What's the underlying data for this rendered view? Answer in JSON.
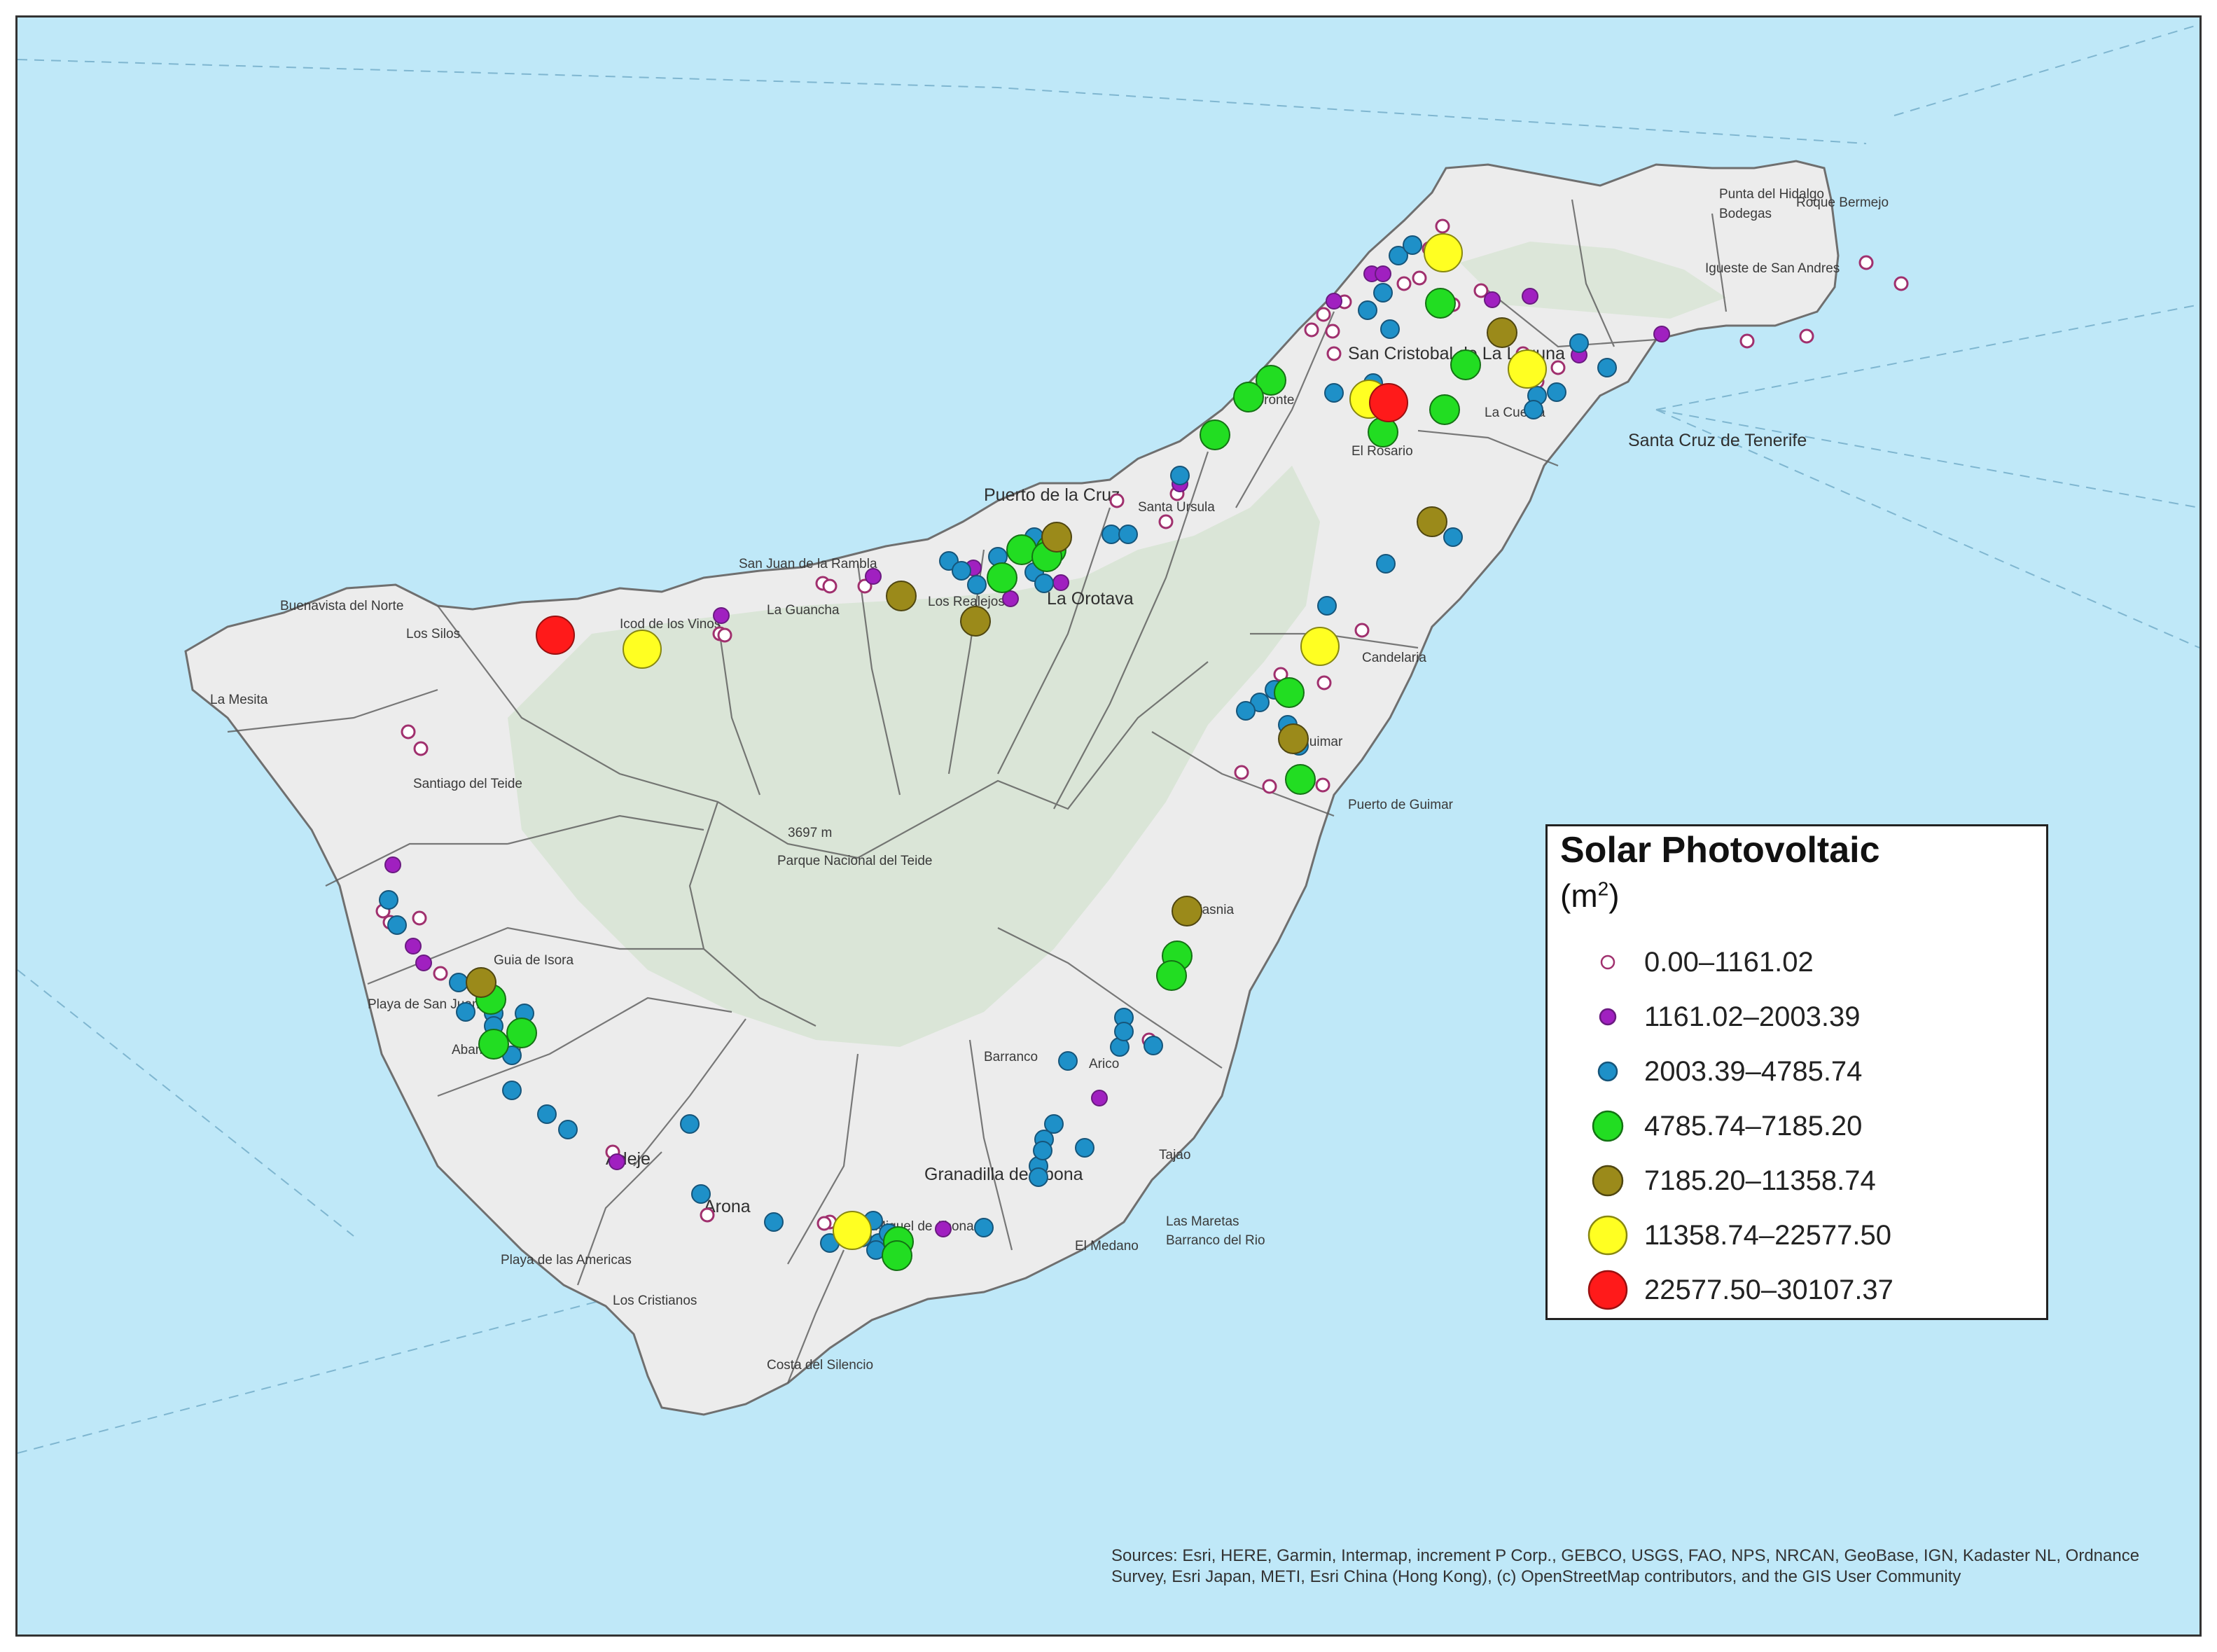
{
  "map": {
    "colors": {
      "sea": "#bfe8f8",
      "land": "#ececec",
      "park": "#d7e4d3",
      "roads": "#6b6b6b",
      "border": "#333333"
    },
    "place_labels": [
      "Punta del Hidalgo",
      "Roque Bermejo",
      "Bodegas",
      "Igueste de San Andres",
      "San Cristobal de La Laguna",
      "Santa Cruz de Tenerife",
      "La Cuesta",
      "El Rosario",
      "Tacoronte",
      "Santa Ursula",
      "Puerto de la Cruz",
      "La Orotava",
      "Los Realejos",
      "San Juan de la Rambla",
      "La Guancha",
      "Icod de los Vinos",
      "Buenavista del Norte",
      "Los Silos",
      "La Mesita",
      "Santiago del Teide",
      "Candelaria",
      "Guimar",
      "Puerto de Guimar",
      "Parque Nacional del Teide",
      "3697 m",
      "Fasnia",
      "Arico",
      "Barranco",
      "Granadilla de Abona",
      "San Miguel de Abona",
      "Guia de Isora",
      "Playa de San Juan",
      "Adeje",
      "Arona",
      "Playa de las Americas",
      "Los Cristianos",
      "El Medano",
      "Las Maretas",
      "Barranco del Rio",
      "Costa del Silencio",
      "Tajao",
      "Abama Golf"
    ]
  },
  "legend": {
    "title": "Solar Photovoltaic",
    "unit_base": "(m",
    "unit_sup": "2",
    "unit_close": ")",
    "classes": [
      {
        "label": "0.00–1161.02",
        "color": "#ffffff",
        "stroke": "#a0306e",
        "size": "xs"
      },
      {
        "label": "1161.02–2003.39",
        "color": "#a020c0",
        "stroke": "#6a1a80",
        "size": "s"
      },
      {
        "label": "2003.39–4785.74",
        "color": "#1e90c8",
        "stroke": "#16557a",
        "size": "m"
      },
      {
        "label": "4785.74–7185.20",
        "color": "#22dd22",
        "stroke": "#147214",
        "size": "l"
      },
      {
        "label": "7185.20–11358.74",
        "color": "#9b8a1a",
        "stroke": "#4f4610",
        "size": "l"
      },
      {
        "label": "11358.74–22577.50",
        "color": "#ffff22",
        "stroke": "#888811",
        "size": "xl"
      },
      {
        "label": "22577.50–30107.37",
        "color": "#ff1a1a",
        "stroke": "#991010",
        "size": "xl"
      }
    ]
  },
  "sources": "Sources: Esri, HERE, Garmin, Intermap, increment P Corp., GEBCO, USGS, FAO, NPS, NRCAN, GeoBase, IGN, Kadaster NL, Ordnance Survey, Esri Japan, METI, Esri China (Hong Kong), (c) OpenStreetMap contributors, and the GIS User Community"
}
